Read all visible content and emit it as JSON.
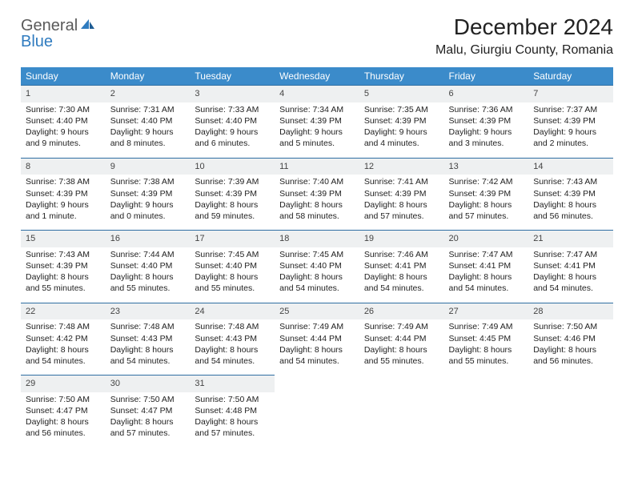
{
  "brand": {
    "part1": "General",
    "part2": "Blue"
  },
  "title": "December 2024",
  "location": "Malu, Giurgiu County, Romania",
  "colors": {
    "header_bg": "#3b8bca",
    "header_text": "#ffffff",
    "daynum_bg": "#eef0f1",
    "rule": "#2f6fa3",
    "brand_gray": "#5a5a5a",
    "brand_blue": "#2f7bbf"
  },
  "weekdays": [
    "Sunday",
    "Monday",
    "Tuesday",
    "Wednesday",
    "Thursday",
    "Friday",
    "Saturday"
  ],
  "weeks": [
    [
      {
        "n": "1",
        "sr": "7:30 AM",
        "ss": "4:40 PM",
        "dl": "9 hours and 9 minutes."
      },
      {
        "n": "2",
        "sr": "7:31 AM",
        "ss": "4:40 PM",
        "dl": "9 hours and 8 minutes."
      },
      {
        "n": "3",
        "sr": "7:33 AM",
        "ss": "4:40 PM",
        "dl": "9 hours and 6 minutes."
      },
      {
        "n": "4",
        "sr": "7:34 AM",
        "ss": "4:39 PM",
        "dl": "9 hours and 5 minutes."
      },
      {
        "n": "5",
        "sr": "7:35 AM",
        "ss": "4:39 PM",
        "dl": "9 hours and 4 minutes."
      },
      {
        "n": "6",
        "sr": "7:36 AM",
        "ss": "4:39 PM",
        "dl": "9 hours and 3 minutes."
      },
      {
        "n": "7",
        "sr": "7:37 AM",
        "ss": "4:39 PM",
        "dl": "9 hours and 2 minutes."
      }
    ],
    [
      {
        "n": "8",
        "sr": "7:38 AM",
        "ss": "4:39 PM",
        "dl": "9 hours and 1 minute."
      },
      {
        "n": "9",
        "sr": "7:38 AM",
        "ss": "4:39 PM",
        "dl": "9 hours and 0 minutes."
      },
      {
        "n": "10",
        "sr": "7:39 AM",
        "ss": "4:39 PM",
        "dl": "8 hours and 59 minutes."
      },
      {
        "n": "11",
        "sr": "7:40 AM",
        "ss": "4:39 PM",
        "dl": "8 hours and 58 minutes."
      },
      {
        "n": "12",
        "sr": "7:41 AM",
        "ss": "4:39 PM",
        "dl": "8 hours and 57 minutes."
      },
      {
        "n": "13",
        "sr": "7:42 AM",
        "ss": "4:39 PM",
        "dl": "8 hours and 57 minutes."
      },
      {
        "n": "14",
        "sr": "7:43 AM",
        "ss": "4:39 PM",
        "dl": "8 hours and 56 minutes."
      }
    ],
    [
      {
        "n": "15",
        "sr": "7:43 AM",
        "ss": "4:39 PM",
        "dl": "8 hours and 55 minutes."
      },
      {
        "n": "16",
        "sr": "7:44 AM",
        "ss": "4:40 PM",
        "dl": "8 hours and 55 minutes."
      },
      {
        "n": "17",
        "sr": "7:45 AM",
        "ss": "4:40 PM",
        "dl": "8 hours and 55 minutes."
      },
      {
        "n": "18",
        "sr": "7:45 AM",
        "ss": "4:40 PM",
        "dl": "8 hours and 54 minutes."
      },
      {
        "n": "19",
        "sr": "7:46 AM",
        "ss": "4:41 PM",
        "dl": "8 hours and 54 minutes."
      },
      {
        "n": "20",
        "sr": "7:47 AM",
        "ss": "4:41 PM",
        "dl": "8 hours and 54 minutes."
      },
      {
        "n": "21",
        "sr": "7:47 AM",
        "ss": "4:41 PM",
        "dl": "8 hours and 54 minutes."
      }
    ],
    [
      {
        "n": "22",
        "sr": "7:48 AM",
        "ss": "4:42 PM",
        "dl": "8 hours and 54 minutes."
      },
      {
        "n": "23",
        "sr": "7:48 AM",
        "ss": "4:43 PM",
        "dl": "8 hours and 54 minutes."
      },
      {
        "n": "24",
        "sr": "7:48 AM",
        "ss": "4:43 PM",
        "dl": "8 hours and 54 minutes."
      },
      {
        "n": "25",
        "sr": "7:49 AM",
        "ss": "4:44 PM",
        "dl": "8 hours and 54 minutes."
      },
      {
        "n": "26",
        "sr": "7:49 AM",
        "ss": "4:44 PM",
        "dl": "8 hours and 55 minutes."
      },
      {
        "n": "27",
        "sr": "7:49 AM",
        "ss": "4:45 PM",
        "dl": "8 hours and 55 minutes."
      },
      {
        "n": "28",
        "sr": "7:50 AM",
        "ss": "4:46 PM",
        "dl": "8 hours and 56 minutes."
      }
    ],
    [
      {
        "n": "29",
        "sr": "7:50 AM",
        "ss": "4:47 PM",
        "dl": "8 hours and 56 minutes."
      },
      {
        "n": "30",
        "sr": "7:50 AM",
        "ss": "4:47 PM",
        "dl": "8 hours and 57 minutes."
      },
      {
        "n": "31",
        "sr": "7:50 AM",
        "ss": "4:48 PM",
        "dl": "8 hours and 57 minutes."
      },
      null,
      null,
      null,
      null
    ]
  ],
  "labels": {
    "sunrise": "Sunrise: ",
    "sunset": "Sunset: ",
    "daylight": "Daylight: "
  }
}
